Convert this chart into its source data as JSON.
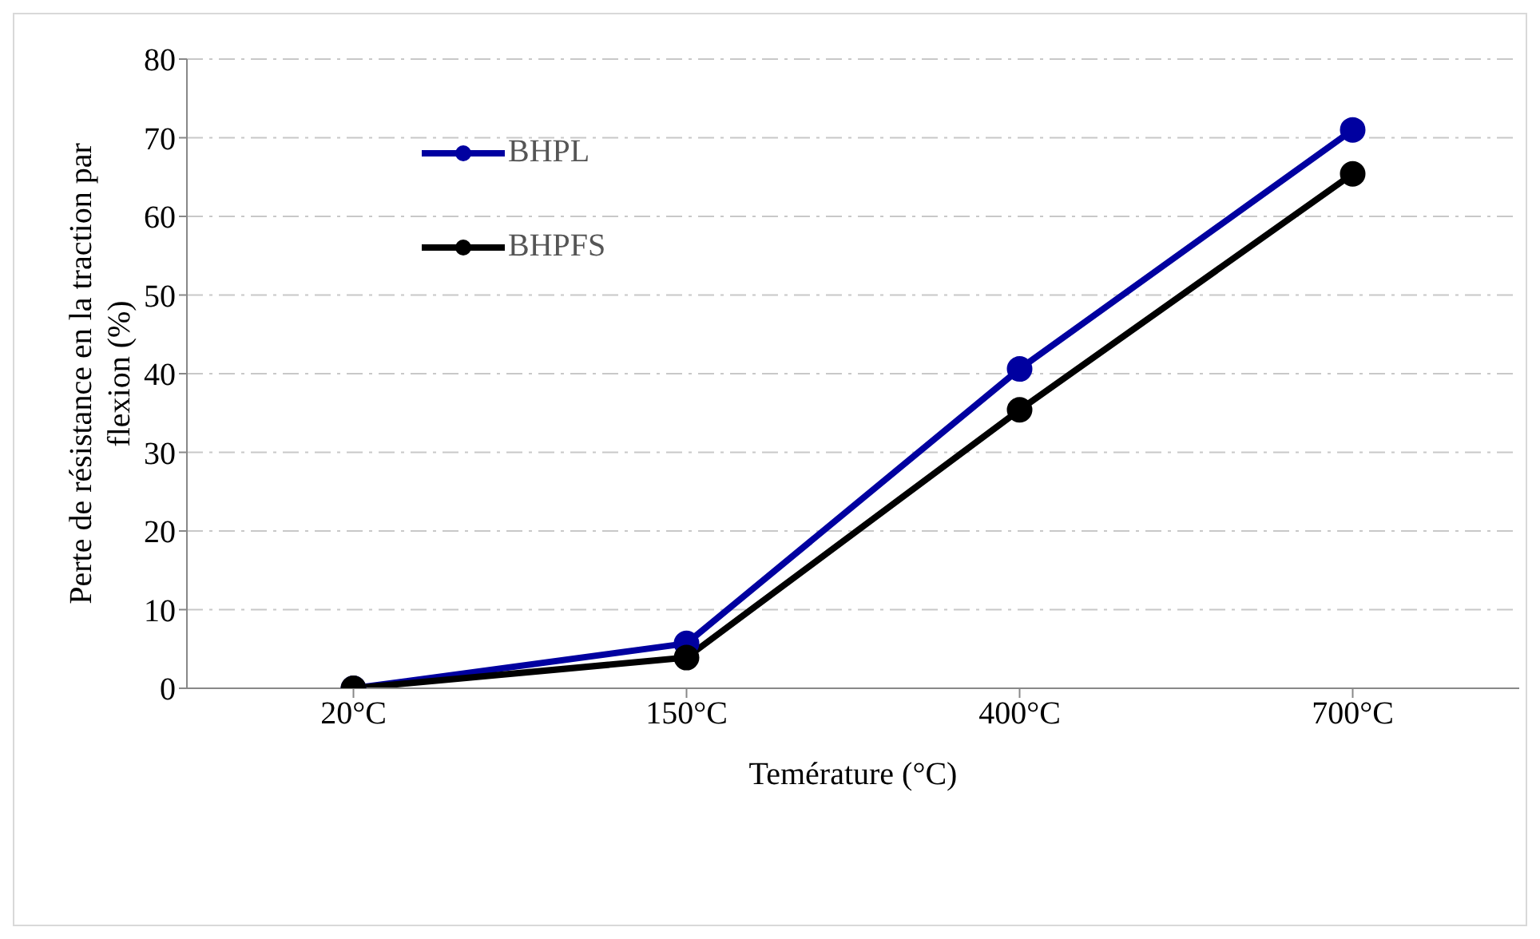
{
  "chart_data": {
    "type": "line",
    "xlabel": "Temérature (°C)",
    "ylabel": "Perte de résistance en la traction par flexion  (%)",
    "categories": [
      "20°C",
      "150°C",
      "400°C",
      "700°C"
    ],
    "series": [
      {
        "name": "BHPL",
        "color": "#0000a0",
        "values": [
          0,
          5.7,
          40.6,
          71.0
        ]
      },
      {
        "name": "BHPFS",
        "color": "#000000",
        "values": [
          0,
          3.9,
          35.4,
          65.4
        ]
      }
    ],
    "ylim": [
      0,
      80
    ],
    "yticks": [
      0,
      10,
      20,
      30,
      40,
      50,
      60,
      70,
      80
    ],
    "grid": "y",
    "legend": "top left",
    "marker": "circle",
    "line_style": "solid"
  }
}
